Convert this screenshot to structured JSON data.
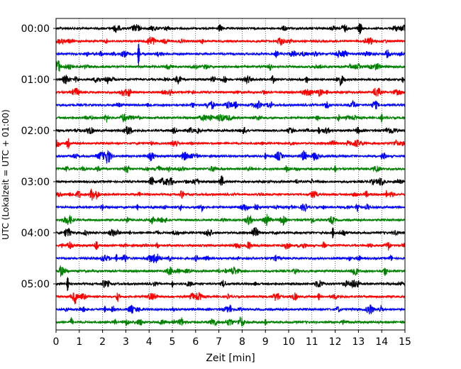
{
  "chart_data": {
    "type": "line",
    "title": "",
    "xlabel": "Zeit  [min]",
    "ylabel": "UTC (Lokalzeit = UTC + 01:00)",
    "xlim": [
      0,
      15
    ],
    "x_ticks": [
      "0",
      "1",
      "2",
      "3",
      "4",
      "5",
      "6",
      "7",
      "8",
      "9",
      "10",
      "11",
      "12",
      "13",
      "14",
      "15"
    ],
    "y_tick_labels": [
      "00:00",
      "01:00",
      "02:00",
      "03:00",
      "04:00",
      "05:00"
    ],
    "rows_per_hour": 4,
    "row_minutes": 15,
    "traces": [
      {
        "start": "00:00",
        "color": "#000000"
      },
      {
        "start": "00:15",
        "color": "#ff0000"
      },
      {
        "start": "00:30",
        "color": "#0000ff",
        "spikes": [
          {
            "minute": 3.55,
            "amplitude": 1.0
          }
        ]
      },
      {
        "start": "00:45",
        "color": "#008000"
      },
      {
        "start": "01:00",
        "color": "#000000",
        "spikes": [
          {
            "minute": 14.9,
            "amplitude": 0.25
          }
        ]
      },
      {
        "start": "01:15",
        "color": "#ff0000",
        "spikes": [
          {
            "minute": 7.8,
            "amplitude": 0.2
          }
        ]
      },
      {
        "start": "01:30",
        "color": "#0000ff"
      },
      {
        "start": "01:45",
        "color": "#008000",
        "spikes": [
          {
            "minute": 14.0,
            "amplitude": 0.35
          }
        ]
      },
      {
        "start": "02:00",
        "color": "#000000",
        "spikes": [
          {
            "minute": 11.3,
            "amplitude": 0.3
          },
          {
            "minute": 14.4,
            "amplitude": 0.25
          }
        ]
      },
      {
        "start": "02:15",
        "color": "#ff0000"
      },
      {
        "start": "02:30",
        "color": "#0000ff",
        "spikes": [
          {
            "minute": 9.0,
            "amplitude": 0.25
          },
          {
            "minute": 14.0,
            "amplitude": 0.25
          }
        ]
      },
      {
        "start": "02:45",
        "color": "#008000",
        "spikes": [
          {
            "minute": 12.0,
            "amplitude": 0.3
          }
        ]
      },
      {
        "start": "03:00",
        "color": "#000000"
      },
      {
        "start": "03:15",
        "color": "#ff0000",
        "spikes": [
          {
            "minute": 14.2,
            "amplitude": 0.3
          }
        ]
      },
      {
        "start": "03:30",
        "color": "#0000ff",
        "spikes": [
          {
            "minute": 3.5,
            "amplitude": 0.25
          },
          {
            "minute": 11.5,
            "amplitude": 0.2
          }
        ]
      },
      {
        "start": "03:45",
        "color": "#008000"
      },
      {
        "start": "04:00",
        "color": "#000000",
        "spikes": [
          {
            "minute": 0.4,
            "amplitude": 0.3
          },
          {
            "minute": 11.9,
            "amplitude": 0.45
          }
        ]
      },
      {
        "start": "04:15",
        "color": "#ff0000",
        "spikes": [
          {
            "minute": 14.3,
            "amplitude": 0.25
          }
        ]
      },
      {
        "start": "04:30",
        "color": "#0000ff",
        "spikes": [
          {
            "minute": 2.6,
            "amplitude": 0.3
          }
        ]
      },
      {
        "start": "04:45",
        "color": "#008000",
        "spikes": [
          {
            "minute": 7.3,
            "amplitude": 0.25
          }
        ]
      },
      {
        "start": "05:00",
        "color": "#000000",
        "spikes": [
          {
            "minute": 0.5,
            "amplitude": 0.6
          },
          {
            "minute": 5.0,
            "amplitude": 0.3
          }
        ]
      },
      {
        "start": "05:15",
        "color": "#ff0000",
        "spikes": [
          {
            "minute": 11.3,
            "amplitude": 0.3
          }
        ]
      },
      {
        "start": "05:30",
        "color": "#0000ff",
        "spikes": [
          {
            "minute": 2.1,
            "amplitude": 0.3
          },
          {
            "minute": 7.5,
            "amplitude": 0.3
          }
        ]
      },
      {
        "start": "05:45",
        "color": "#008000",
        "spikes": [
          {
            "minute": 9.0,
            "amplitude": 0.3
          }
        ]
      }
    ],
    "grid": "vertical dotted",
    "legend": "none"
  }
}
